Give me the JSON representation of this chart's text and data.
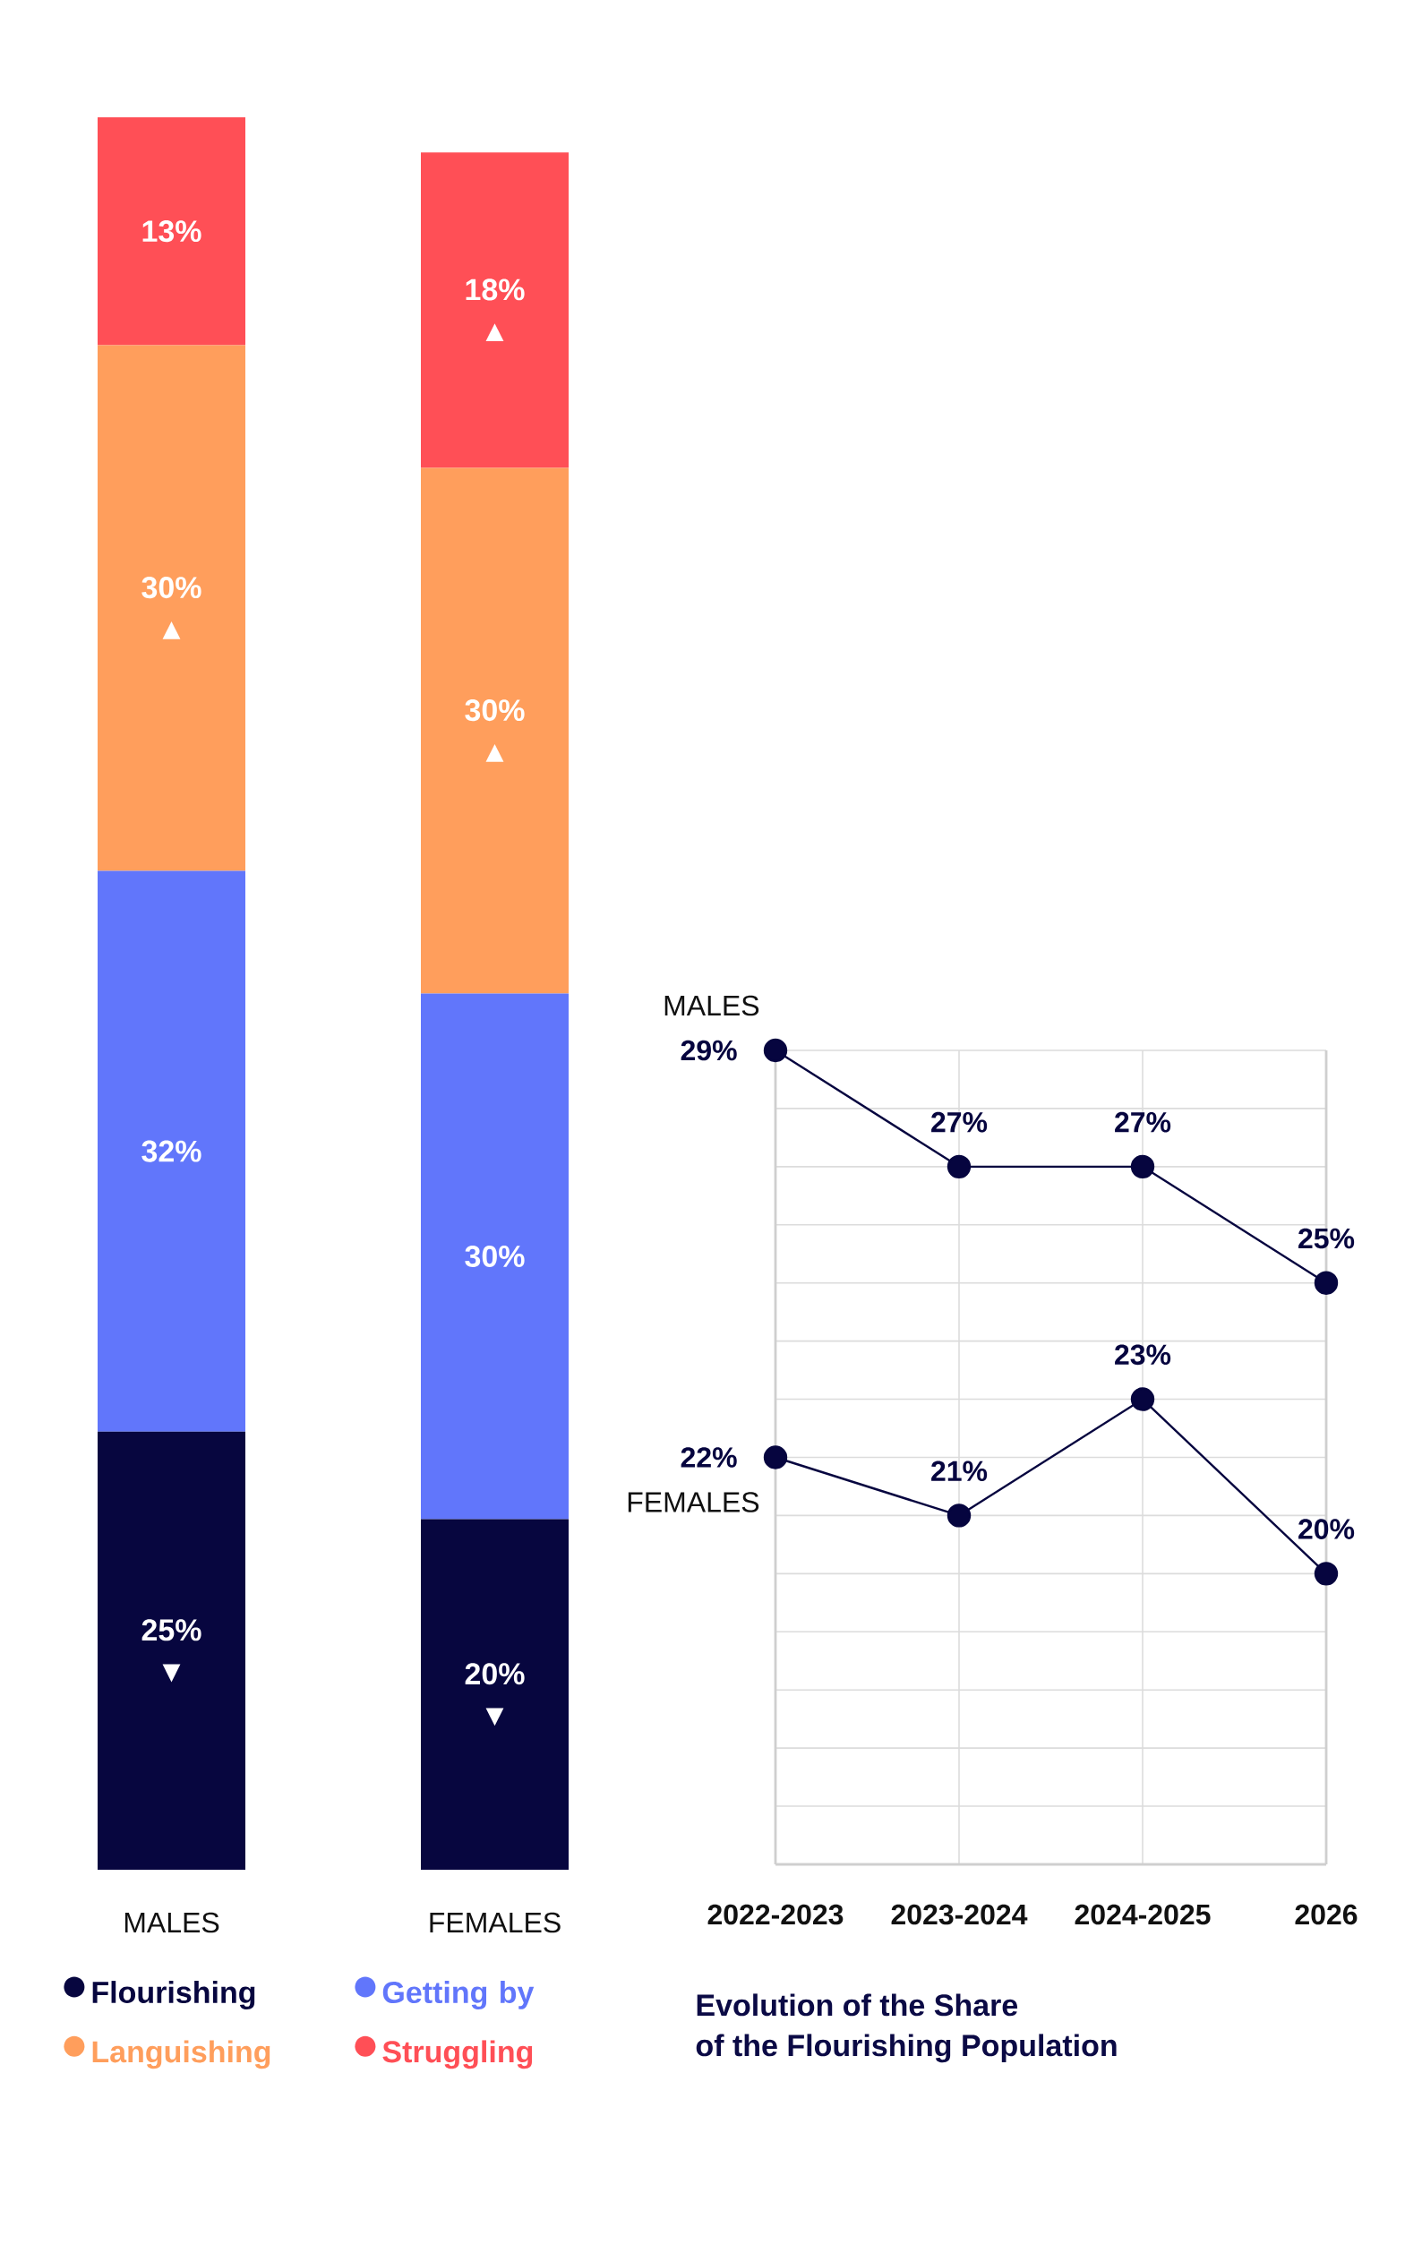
{
  "chart_data": [
    {
      "type": "bar",
      "stacked": true,
      "categories": [
        "MALES",
        "FEMALES"
      ],
      "series": [
        {
          "name": "Flourishing",
          "color": "#07063f",
          "values": [
            25,
            20
          ],
          "value_labels": [
            "25% ▼",
            "20% ▼"
          ]
        },
        {
          "name": "Getting by",
          "color": "#6176fb",
          "values": [
            32,
            30
          ],
          "value_labels": [
            "32%",
            "30%"
          ]
        },
        {
          "name": "Languishing",
          "color": "#ff9e5c",
          "values": [
            30,
            30
          ],
          "value_labels": [
            "30% ▲",
            "30% ▲"
          ]
        },
        {
          "name": "Struggling",
          "color": "#ff4f56",
          "values": [
            13,
            18
          ],
          "value_labels": [
            "13%",
            "18% ▲"
          ]
        }
      ],
      "tick_labels": "x",
      "legend": "bottom"
    },
    {
      "type": "line",
      "title": "Evolution of the Share of the Flourishing Population",
      "categories": [
        "2022-2023",
        "2023-2024",
        "2024-2025",
        "2026"
      ],
      "series": [
        {
          "name": "MALES",
          "color": "#06053f",
          "values": [
            29,
            27,
            27,
            25
          ],
          "value_labels": [
            "29%",
            "27%",
            "27%",
            "25%"
          ]
        },
        {
          "name": "FEMALES",
          "color": "#06053f",
          "values": [
            22,
            21,
            23,
            20
          ],
          "value_labels": [
            "22%",
            "21%",
            "23%",
            "20%"
          ]
        }
      ],
      "grid": true,
      "tick_labels": "x",
      "marker": "circle",
      "line_style": "solid"
    }
  ]
}
